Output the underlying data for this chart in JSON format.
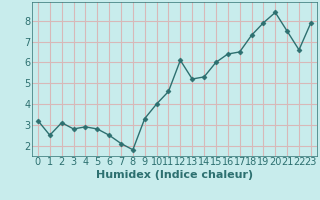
{
  "x": [
    0,
    1,
    2,
    3,
    4,
    5,
    6,
    7,
    8,
    9,
    10,
    11,
    12,
    13,
    14,
    15,
    16,
    17,
    18,
    19,
    20,
    21,
    22,
    23
  ],
  "y": [
    3.2,
    2.5,
    3.1,
    2.8,
    2.9,
    2.8,
    2.5,
    2.1,
    1.8,
    3.3,
    4.0,
    4.6,
    6.1,
    5.2,
    5.3,
    6.0,
    6.4,
    6.5,
    7.3,
    7.9,
    8.4,
    7.5,
    6.6,
    7.9
  ],
  "xlabel": "Humidex (Indice chaleur)",
  "ylim": [
    1.5,
    8.9
  ],
  "xlim": [
    -0.5,
    23.5
  ],
  "yticks": [
    2,
    3,
    4,
    5,
    6,
    7,
    8
  ],
  "xticks": [
    0,
    1,
    2,
    3,
    4,
    5,
    6,
    7,
    8,
    9,
    10,
    11,
    12,
    13,
    14,
    15,
    16,
    17,
    18,
    19,
    20,
    21,
    22,
    23
  ],
  "line_color": "#2d7070",
  "marker": "D",
  "marker_size": 2.5,
  "bg_color": "#c8ecec",
  "grid_color": "#d8b8b8",
  "xlabel_fontsize": 8,
  "tick_fontsize": 7,
  "linewidth": 1.0
}
